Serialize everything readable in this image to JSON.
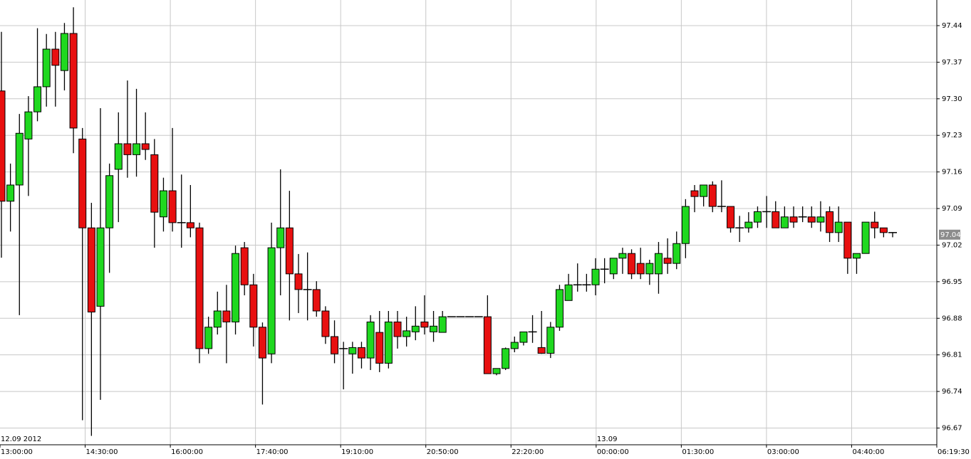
{
  "chart_data": {
    "type": "candlestick",
    "up_color": "#1fd81f",
    "down_color": "#e81010",
    "ylim": [
      96.638,
      97.489
    ],
    "yticks": [
      97.44,
      97.37,
      97.3,
      97.23,
      97.16,
      97.09,
      97.02,
      96.95,
      96.88,
      96.81,
      96.74,
      96.67
    ],
    "ytick_labels": [
      "97.44",
      "97.37",
      "97.30",
      "97.23",
      "97.16",
      "97.09",
      "97.02",
      "96.95",
      "96.88",
      "96.81",
      "96.74",
      "96.67"
    ],
    "grid": true,
    "x_tick_labels": [
      "13:00:00",
      "14:30:00",
      "16:00:00",
      "17:40:00",
      "19:10:00",
      "20:50:00",
      "22:20:00",
      "00:00:00",
      "01:30:00",
      "03:00:00",
      "04:40:00",
      "06:19:30"
    ],
    "date_labels": [
      "12.09 2012",
      "13.09"
    ],
    "last_price": {
      "value": 97.04,
      "label": "97.04"
    },
    "candles": [
      [
        97.315,
        97.428,
        96.996,
        97.104
      ],
      [
        97.104,
        97.176,
        97.046,
        97.135
      ],
      [
        97.135,
        97.271,
        96.886,
        97.234
      ],
      [
        97.223,
        97.305,
        97.114,
        97.275
      ],
      [
        97.275,
        97.435,
        97.257,
        97.323
      ],
      [
        97.323,
        97.424,
        97.285,
        97.395
      ],
      [
        97.395,
        97.428,
        97.285,
        97.364
      ],
      [
        97.354,
        97.445,
        97.316,
        97.425
      ],
      [
        97.425,
        97.475,
        97.196,
        97.244
      ],
      [
        97.223,
        97.244,
        96.685,
        97.053
      ],
      [
        97.053,
        97.101,
        96.655,
        96.892
      ],
      [
        96.903,
        97.282,
        96.724,
        97.053
      ],
      [
        97.053,
        97.176,
        96.967,
        97.153
      ],
      [
        97.165,
        97.274,
        97.064,
        97.214
      ],
      [
        97.214,
        97.335,
        97.149,
        97.193
      ],
      [
        97.193,
        97.319,
        97.151,
        97.214
      ],
      [
        97.214,
        97.274,
        97.183,
        97.203
      ],
      [
        97.193,
        97.223,
        97.015,
        97.083
      ],
      [
        97.074,
        97.149,
        97.046,
        97.124
      ],
      [
        97.124,
        97.244,
        97.046,
        97.063
      ],
      [
        97.063,
        97.155,
        97.015,
        97.063
      ],
      [
        97.063,
        97.135,
        97.035,
        97.053
      ],
      [
        97.053,
        97.063,
        96.794,
        96.822
      ],
      [
        96.822,
        96.883,
        96.812,
        96.863
      ],
      [
        96.863,
        96.931,
        96.849,
        96.894
      ],
      [
        96.894,
        96.944,
        96.794,
        96.873
      ],
      [
        96.873,
        97.019,
        96.849,
        97.004
      ],
      [
        97.015,
        97.026,
        96.924,
        96.944
      ],
      [
        96.944,
        96.965,
        96.826,
        96.863
      ],
      [
        96.863,
        96.872,
        96.715,
        96.804
      ],
      [
        96.812,
        97.063,
        96.794,
        97.015
      ],
      [
        97.015,
        97.165,
        96.924,
        97.053
      ],
      [
        97.053,
        97.124,
        96.876,
        96.965
      ],
      [
        96.965,
        97.003,
        96.89,
        96.935
      ],
      [
        96.935,
        97.006,
        96.876,
        96.935
      ],
      [
        96.935,
        96.951,
        96.883,
        96.894
      ],
      [
        96.894,
        96.903,
        96.831,
        96.845
      ],
      [
        96.845,
        96.876,
        96.794,
        96.812
      ],
      [
        96.822,
        96.835,
        96.744,
        96.822
      ],
      [
        96.812,
        96.835,
        96.774,
        96.824
      ],
      [
        96.824,
        96.835,
        96.784,
        96.804
      ],
      [
        96.804,
        96.886,
        96.781,
        96.873
      ],
      [
        96.853,
        96.894,
        96.777,
        96.794
      ],
      [
        96.794,
        96.894,
        96.784,
        96.873
      ],
      [
        96.873,
        96.894,
        96.822,
        96.845
      ],
      [
        96.845,
        96.883,
        96.826,
        96.856
      ],
      [
        96.854,
        96.903,
        96.838,
        96.865
      ],
      [
        96.873,
        96.924,
        96.849,
        96.863
      ],
      [
        96.854,
        96.894,
        96.835,
        96.865
      ],
      [
        96.853,
        96.894,
        96.853,
        96.883
      ],
      [
        96.883,
        96.883,
        96.883,
        96.883
      ],
      [
        96.883,
        96.883,
        96.883,
        96.883
      ],
      [
        96.883,
        96.883,
        96.883,
        96.883
      ],
      [
        96.883,
        96.883,
        96.883,
        96.883
      ],
      [
        96.883,
        96.924,
        96.774,
        96.774
      ],
      [
        96.774,
        96.784,
        96.771,
        96.784
      ],
      [
        96.784,
        96.824,
        96.781,
        96.822
      ],
      [
        96.822,
        96.845,
        96.815,
        96.834
      ],
      [
        96.834,
        96.854,
        96.828,
        96.854
      ],
      [
        96.854,
        96.886,
        96.833,
        96.854
      ],
      [
        96.824,
        96.894,
        96.812,
        96.813
      ],
      [
        96.813,
        96.873,
        96.804,
        96.863
      ],
      [
        96.863,
        96.944,
        96.856,
        96.935
      ],
      [
        96.914,
        96.965,
        96.914,
        96.944
      ],
      [
        96.944,
        96.985,
        96.931,
        96.944
      ],
      [
        96.944,
        96.965,
        96.931,
        96.944
      ],
      [
        96.944,
        96.995,
        96.924,
        96.974
      ],
      [
        96.974,
        96.995,
        96.947,
        96.974
      ],
      [
        96.965,
        96.995,
        96.955,
        96.995
      ],
      [
        96.995,
        97.015,
        96.965,
        97.004
      ],
      [
        97.004,
        97.012,
        96.955,
        96.965
      ],
      [
        96.985,
        97.015,
        96.955,
        96.965
      ],
      [
        96.965,
        96.992,
        96.944,
        96.985
      ],
      [
        96.965,
        97.026,
        96.927,
        97.004
      ],
      [
        96.995,
        97.033,
        96.965,
        96.985
      ],
      [
        96.985,
        97.046,
        96.974,
        97.023
      ],
      [
        97.023,
        97.108,
        96.995,
        97.094
      ],
      [
        97.124,
        97.135,
        97.083,
        97.113
      ],
      [
        97.113,
        97.135,
        97.094,
        97.135
      ],
      [
        97.135,
        97.142,
        97.083,
        97.094
      ],
      [
        97.094,
        97.144,
        97.083,
        97.094
      ],
      [
        97.094,
        97.094,
        97.044,
        97.053
      ],
      [
        97.053,
        97.076,
        97.026,
        97.053
      ],
      [
        97.053,
        97.083,
        97.044,
        97.064
      ],
      [
        97.064,
        97.094,
        97.053,
        97.084
      ],
      [
        97.084,
        97.114,
        97.053,
        97.084
      ],
      [
        97.084,
        97.104,
        97.053,
        97.053
      ],
      [
        97.053,
        97.094,
        97.053,
        97.074
      ],
      [
        97.074,
        97.094,
        97.053,
        97.064
      ],
      [
        97.074,
        97.094,
        97.064,
        97.074
      ],
      [
        97.074,
        97.094,
        97.053,
        97.064
      ],
      [
        97.064,
        97.104,
        97.046,
        97.074
      ],
      [
        97.084,
        97.094,
        97.026,
        97.044
      ],
      [
        97.044,
        97.094,
        97.026,
        97.064
      ],
      [
        97.064,
        97.064,
        96.965,
        96.995
      ],
      [
        96.995,
        97.004,
        96.965,
        97.004
      ],
      [
        97.004,
        97.064,
        97.004,
        97.064
      ],
      [
        97.064,
        97.084,
        97.033,
        97.053
      ],
      [
        97.053,
        97.053,
        97.035,
        97.044
      ],
      [
        97.044,
        97.044,
        97.035,
        97.044
      ]
    ]
  }
}
